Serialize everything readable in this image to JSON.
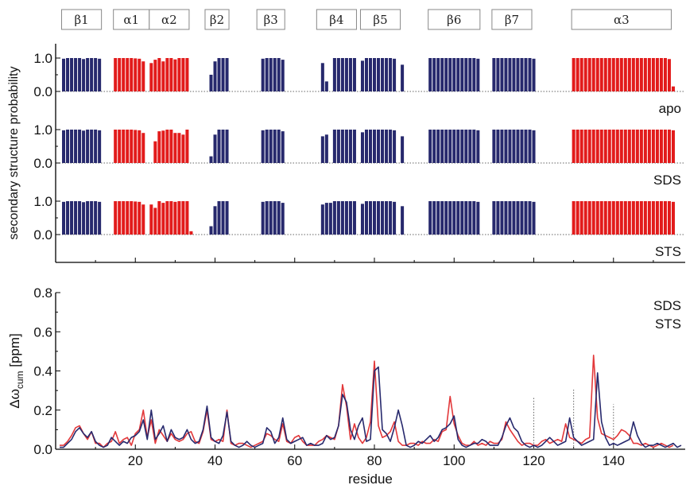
{
  "colors": {
    "strand": "#27296d",
    "helix": "#e21b1b",
    "sds_line": "#27296d",
    "sts_line": "#e2383a",
    "dotted": "#666666"
  },
  "sse_boxes": [
    {
      "label": "β1",
      "start": 2,
      "end": 11
    },
    {
      "label": "α1",
      "start": 15,
      "end": 23
    },
    {
      "label": "α2",
      "start": 24,
      "end": 33
    },
    {
      "label": "β2",
      "start": 38,
      "end": 43
    },
    {
      "label": "β3",
      "start": 51,
      "end": 57
    },
    {
      "label": "β4",
      "start": 66,
      "end": 75
    },
    {
      "label": "β5",
      "start": 77,
      "end": 86
    },
    {
      "label": "β6",
      "start": 94,
      "end": 106
    },
    {
      "label": "β7",
      "start": 110,
      "end": 119
    },
    {
      "label": "α3",
      "start": 130,
      "end": 154
    }
  ],
  "chart_data": [
    {
      "type": "bar",
      "title": "",
      "ylabel": "secondary structure probability",
      "xlim": [
        0,
        158
      ],
      "y_ticks": [
        "0.0",
        "1.0"
      ],
      "panels": [
        {
          "name": "apo",
          "segments": [
            {
              "ss": "strand",
              "start": 2,
              "end": 11,
              "values": [
                0.98,
                1,
                1,
                1,
                1,
                0.97,
                1,
                1,
                1,
                0.98
              ]
            },
            {
              "ss": "helix",
              "start": 15,
              "end": 22,
              "values": [
                1,
                1,
                1,
                1,
                1,
                0.99,
                0.98,
                0.9
              ]
            },
            {
              "ss": "helix",
              "start": 24,
              "end": 33,
              "values": [
                0.85,
                0.95,
                1,
                0.9,
                1,
                1,
                0.96,
                1,
                1,
                1
              ]
            },
            {
              "ss": "strand",
              "start": 39,
              "end": 43,
              "values": [
                0.5,
                0.9,
                1,
                1,
                1
              ]
            },
            {
              "ss": "strand",
              "start": 52,
              "end": 57,
              "values": [
                0.98,
                1,
                1,
                1,
                1,
                0.95
              ]
            },
            {
              "ss": "strand",
              "start": 67,
              "end": 68,
              "values": [
                0.85,
                0.3
              ]
            },
            {
              "ss": "strand",
              "start": 70,
              "end": 75,
              "values": [
                1,
                1,
                1,
                1,
                1,
                1
              ]
            },
            {
              "ss": "strand",
              "start": 77,
              "end": 85,
              "values": [
                0.92,
                1,
                1,
                1,
                1,
                1,
                1,
                1,
                0.98
              ]
            },
            {
              "ss": "strand",
              "start": 87,
              "end": 87,
              "values": [
                0.8
              ]
            },
            {
              "ss": "strand",
              "start": 94,
              "end": 106,
              "values": [
                1,
                1,
                1,
                1,
                1,
                1,
                1,
                1,
                1,
                1,
                1,
                1,
                0.98
              ]
            },
            {
              "ss": "strand",
              "start": 110,
              "end": 120,
              "values": [
                1,
                1,
                1,
                1,
                1,
                1,
                1,
                1,
                1,
                1,
                0.98
              ]
            },
            {
              "ss": "helix",
              "start": 130,
              "end": 154,
              "values": [
                1,
                1,
                1,
                1,
                1,
                1,
                1,
                1,
                1,
                1,
                1,
                1,
                1,
                1,
                1,
                1,
                1,
                1,
                1,
                1,
                1,
                1,
                1,
                1,
                0.97
              ]
            },
            {
              "ss": "helix",
              "start": 155,
              "end": 155,
              "values": [
                0.15
              ]
            }
          ]
        },
        {
          "name": "SDS",
          "segments": [
            {
              "ss": "strand",
              "start": 2,
              "end": 11,
              "values": [
                0.98,
                1,
                1,
                1,
                1,
                0.97,
                1,
                1,
                1,
                0.98
              ]
            },
            {
              "ss": "helix",
              "start": 15,
              "end": 22,
              "values": [
                1,
                1,
                1,
                1,
                1,
                0.99,
                0.98,
                0.9
              ]
            },
            {
              "ss": "helix",
              "start": 25,
              "end": 33,
              "values": [
                0.65,
                0.95,
                0.97,
                1,
                1,
                0.9,
                0.9,
                0.85,
                1
              ]
            },
            {
              "ss": "strand",
              "start": 39,
              "end": 43,
              "values": [
                0.2,
                0.85,
                1,
                1,
                1
              ]
            },
            {
              "ss": "strand",
              "start": 52,
              "end": 57,
              "values": [
                0.98,
                1,
                1,
                1,
                1,
                0.95
              ]
            },
            {
              "ss": "strand",
              "start": 67,
              "end": 68,
              "values": [
                0.8,
                0.85
              ]
            },
            {
              "ss": "strand",
              "start": 70,
              "end": 75,
              "values": [
                1,
                1,
                1,
                1,
                1,
                1
              ]
            },
            {
              "ss": "strand",
              "start": 77,
              "end": 85,
              "values": [
                0.92,
                1,
                1,
                1,
                1,
                1,
                1,
                1,
                0.98
              ]
            },
            {
              "ss": "strand",
              "start": 87,
              "end": 87,
              "values": [
                0.8
              ]
            },
            {
              "ss": "strand",
              "start": 94,
              "end": 106,
              "values": [
                1,
                1,
                1,
                1,
                1,
                1,
                1,
                1,
                1,
                1,
                1,
                1,
                0.98
              ]
            },
            {
              "ss": "strand",
              "start": 110,
              "end": 120,
              "values": [
                1,
                1,
                1,
                1,
                1,
                1,
                1,
                1,
                1,
                1,
                0.98
              ]
            },
            {
              "ss": "helix",
              "start": 130,
              "end": 155,
              "values": [
                1,
                1,
                1,
                1,
                1,
                1,
                1,
                1,
                1,
                1,
                1,
                1,
                1,
                1,
                1,
                1,
                1,
                1,
                1,
                1,
                1,
                1,
                1,
                1,
                1,
                0.98
              ]
            }
          ]
        },
        {
          "name": "STS",
          "segments": [
            {
              "ss": "strand",
              "start": 2,
              "end": 11,
              "values": [
                0.98,
                1,
                1,
                1,
                1,
                0.97,
                1,
                1,
                1,
                0.98
              ]
            },
            {
              "ss": "helix",
              "start": 15,
              "end": 22,
              "values": [
                1,
                1,
                1,
                1,
                1,
                0.99,
                0.98,
                0.9
              ]
            },
            {
              "ss": "helix",
              "start": 24,
              "end": 34,
              "values": [
                0.9,
                0.8,
                1,
                0.95,
                1,
                1,
                0.98,
                1,
                1,
                1,
                0.1
              ]
            },
            {
              "ss": "strand",
              "start": 39,
              "end": 43,
              "values": [
                0.25,
                0.85,
                1,
                1,
                1
              ]
            },
            {
              "ss": "strand",
              "start": 52,
              "end": 57,
              "values": [
                0.98,
                1,
                1,
                1,
                1,
                0.95
              ]
            },
            {
              "ss": "strand",
              "start": 67,
              "end": 75,
              "values": [
                0.9,
                0.95,
                0.95,
                1,
                1,
                1,
                1,
                1,
                1
              ]
            },
            {
              "ss": "strand",
              "start": 77,
              "end": 85,
              "values": [
                0.92,
                1,
                1,
                1,
                1,
                1,
                1,
                1,
                0.98
              ]
            },
            {
              "ss": "strand",
              "start": 87,
              "end": 87,
              "values": [
                0.85
              ]
            },
            {
              "ss": "strand",
              "start": 94,
              "end": 106,
              "values": [
                1,
                1,
                1,
                1,
                1,
                1,
                1,
                1,
                1,
                1,
                1,
                1,
                0.98
              ]
            },
            {
              "ss": "strand",
              "start": 110,
              "end": 120,
              "values": [
                1,
                1,
                1,
                1,
                1,
                1,
                1,
                1,
                1,
                1,
                0.98
              ]
            },
            {
              "ss": "helix",
              "start": 130,
              "end": 155,
              "values": [
                1,
                1,
                1,
                1,
                1,
                1,
                1,
                1,
                1,
                1,
                1,
                1,
                1,
                1,
                1,
                1,
                1,
                1,
                1,
                1,
                1,
                1,
                1,
                1,
                1,
                0.98
              ]
            }
          ]
        }
      ]
    },
    {
      "type": "line",
      "title": "",
      "xlabel": "residue",
      "ylabel_main": "Δω",
      "ylabel_sub": "cum",
      "ylabel_unit": "[ppm]",
      "xlim": [
        0,
        158
      ],
      "ylim": [
        0,
        0.8
      ],
      "x_ticks": [
        20,
        40,
        60,
        80,
        100,
        120,
        140
      ],
      "y_ticks": [
        "0.0",
        "0.2",
        "0.4",
        "0.6",
        "0.8"
      ],
      "y_tick_values": [
        0,
        0.2,
        0.4,
        0.6,
        0.8
      ],
      "dotted_markers": [
        {
          "x": 120,
          "y": 0.27
        },
        {
          "x": 130,
          "y": 0.31
        },
        {
          "x": 140,
          "y": 0.23
        }
      ],
      "x_start": 1,
      "series": [
        {
          "name": "SDS",
          "values": [
            0.01,
            0.01,
            0.03,
            0.05,
            0.09,
            0.11,
            0.08,
            0.06,
            0.09,
            0.04,
            0.02,
            0.01,
            0.02,
            0.06,
            0.04,
            0.02,
            0.04,
            0.03,
            0.06,
            0.07,
            0.09,
            0.15,
            0.05,
            0.2,
            0.05,
            0.08,
            0.12,
            0.04,
            0.1,
            0.06,
            0.05,
            0.06,
            0.1,
            0.05,
            0.03,
            0.04,
            0.1,
            0.22,
            0.06,
            0.04,
            0.03,
            0.07,
            0.19,
            0.04,
            0.02,
            0.01,
            0.02,
            0.04,
            0.02,
            0.01,
            0.02,
            0.03,
            0.11,
            0.09,
            0.03,
            0.06,
            0.16,
            0.05,
            0.03,
            0.04,
            0.05,
            0.06,
            0.02,
            0.03,
            0.02,
            0.02,
            0.03,
            0.07,
            0.05,
            0.06,
            0.12,
            0.28,
            0.24,
            0.1,
            0.05,
            0.12,
            0.16,
            0.04,
            0.05,
            0.4,
            0.42,
            0.1,
            0.08,
            0.04,
            0.11,
            0.2,
            0.12,
            0.02,
            0.01,
            0.02,
            0.04,
            0.03,
            0.05,
            0.07,
            0.04,
            0.06,
            0.1,
            0.11,
            0.13,
            0.17,
            0.05,
            0.02,
            0.01,
            0.02,
            0.03,
            0.03,
            0.05,
            0.04,
            0.02,
            0.02,
            0.02,
            0.06,
            0.12,
            0.16,
            0.11,
            0.09,
            0.04,
            0.02,
            0.01,
            0.02,
            0.01,
            0.02,
            0.04,
            0.06,
            0.04,
            0.02,
            0.03,
            0.04,
            0.16,
            0.06,
            0.04,
            0.02,
            0.03,
            0.04,
            0.05,
            0.39,
            0.14,
            0.06,
            0.02,
            0.03,
            0.02,
            0.03,
            0.04,
            0.05,
            0.14,
            0.07,
            0.03,
            0.01,
            0.02,
            0.02,
            0.03,
            0.02,
            0.01,
            0.02,
            0.03,
            0.01,
            0.02
          ]
        },
        {
          "name": "STS",
          "values": [
            0.02,
            0.02,
            0.04,
            0.07,
            0.11,
            0.12,
            0.08,
            0.05,
            0.09,
            0.03,
            0.03,
            0.01,
            0.03,
            0.04,
            0.09,
            0.03,
            0.05,
            0.06,
            0.02,
            0.08,
            0.1,
            0.2,
            0.06,
            0.15,
            0.03,
            0.1,
            0.07,
            0.04,
            0.08,
            0.05,
            0.04,
            0.05,
            0.08,
            0.09,
            0.04,
            0.03,
            0.09,
            0.2,
            0.05,
            0.04,
            0.05,
            0.04,
            0.2,
            0.03,
            0.02,
            0.03,
            0.03,
            0.02,
            0.01,
            0.02,
            0.03,
            0.04,
            0.08,
            0.07,
            0.05,
            0.04,
            0.13,
            0.04,
            0.03,
            0.06,
            0.07,
            0.04,
            0.02,
            0.02,
            0.02,
            0.04,
            0.05,
            0.07,
            0.06,
            0.05,
            0.12,
            0.33,
            0.22,
            0.05,
            0.13,
            0.06,
            0.03,
            0.06,
            0.14,
            0.45,
            0.12,
            0.06,
            0.07,
            0.09,
            0.14,
            0.04,
            0.02,
            0.02,
            0.03,
            0.03,
            0.02,
            0.04,
            0.03,
            0.03,
            0.05,
            0.04,
            0.09,
            0.1,
            0.27,
            0.13,
            0.07,
            0.03,
            0.02,
            0.02,
            0.04,
            0.02,
            0.03,
            0.02,
            0.04,
            0.03,
            0.03,
            0.05,
            0.14,
            0.1,
            0.07,
            0.04,
            0.02,
            0.03,
            0.03,
            0.02,
            0.02,
            0.04,
            0.05,
            0.03,
            0.04,
            0.05,
            0.04,
            0.13,
            0.06,
            0.05,
            0.04,
            0.03,
            0.05,
            0.06,
            0.48,
            0.16,
            0.08,
            0.07,
            0.06,
            0.05,
            0.07,
            0.1,
            0.09,
            0.07,
            0.03,
            0.03,
            0.02,
            0.03,
            0.02,
            0.01,
            0.02,
            0.03,
            0.02,
            0.01,
            0.02
          ]
        }
      ]
    }
  ]
}
